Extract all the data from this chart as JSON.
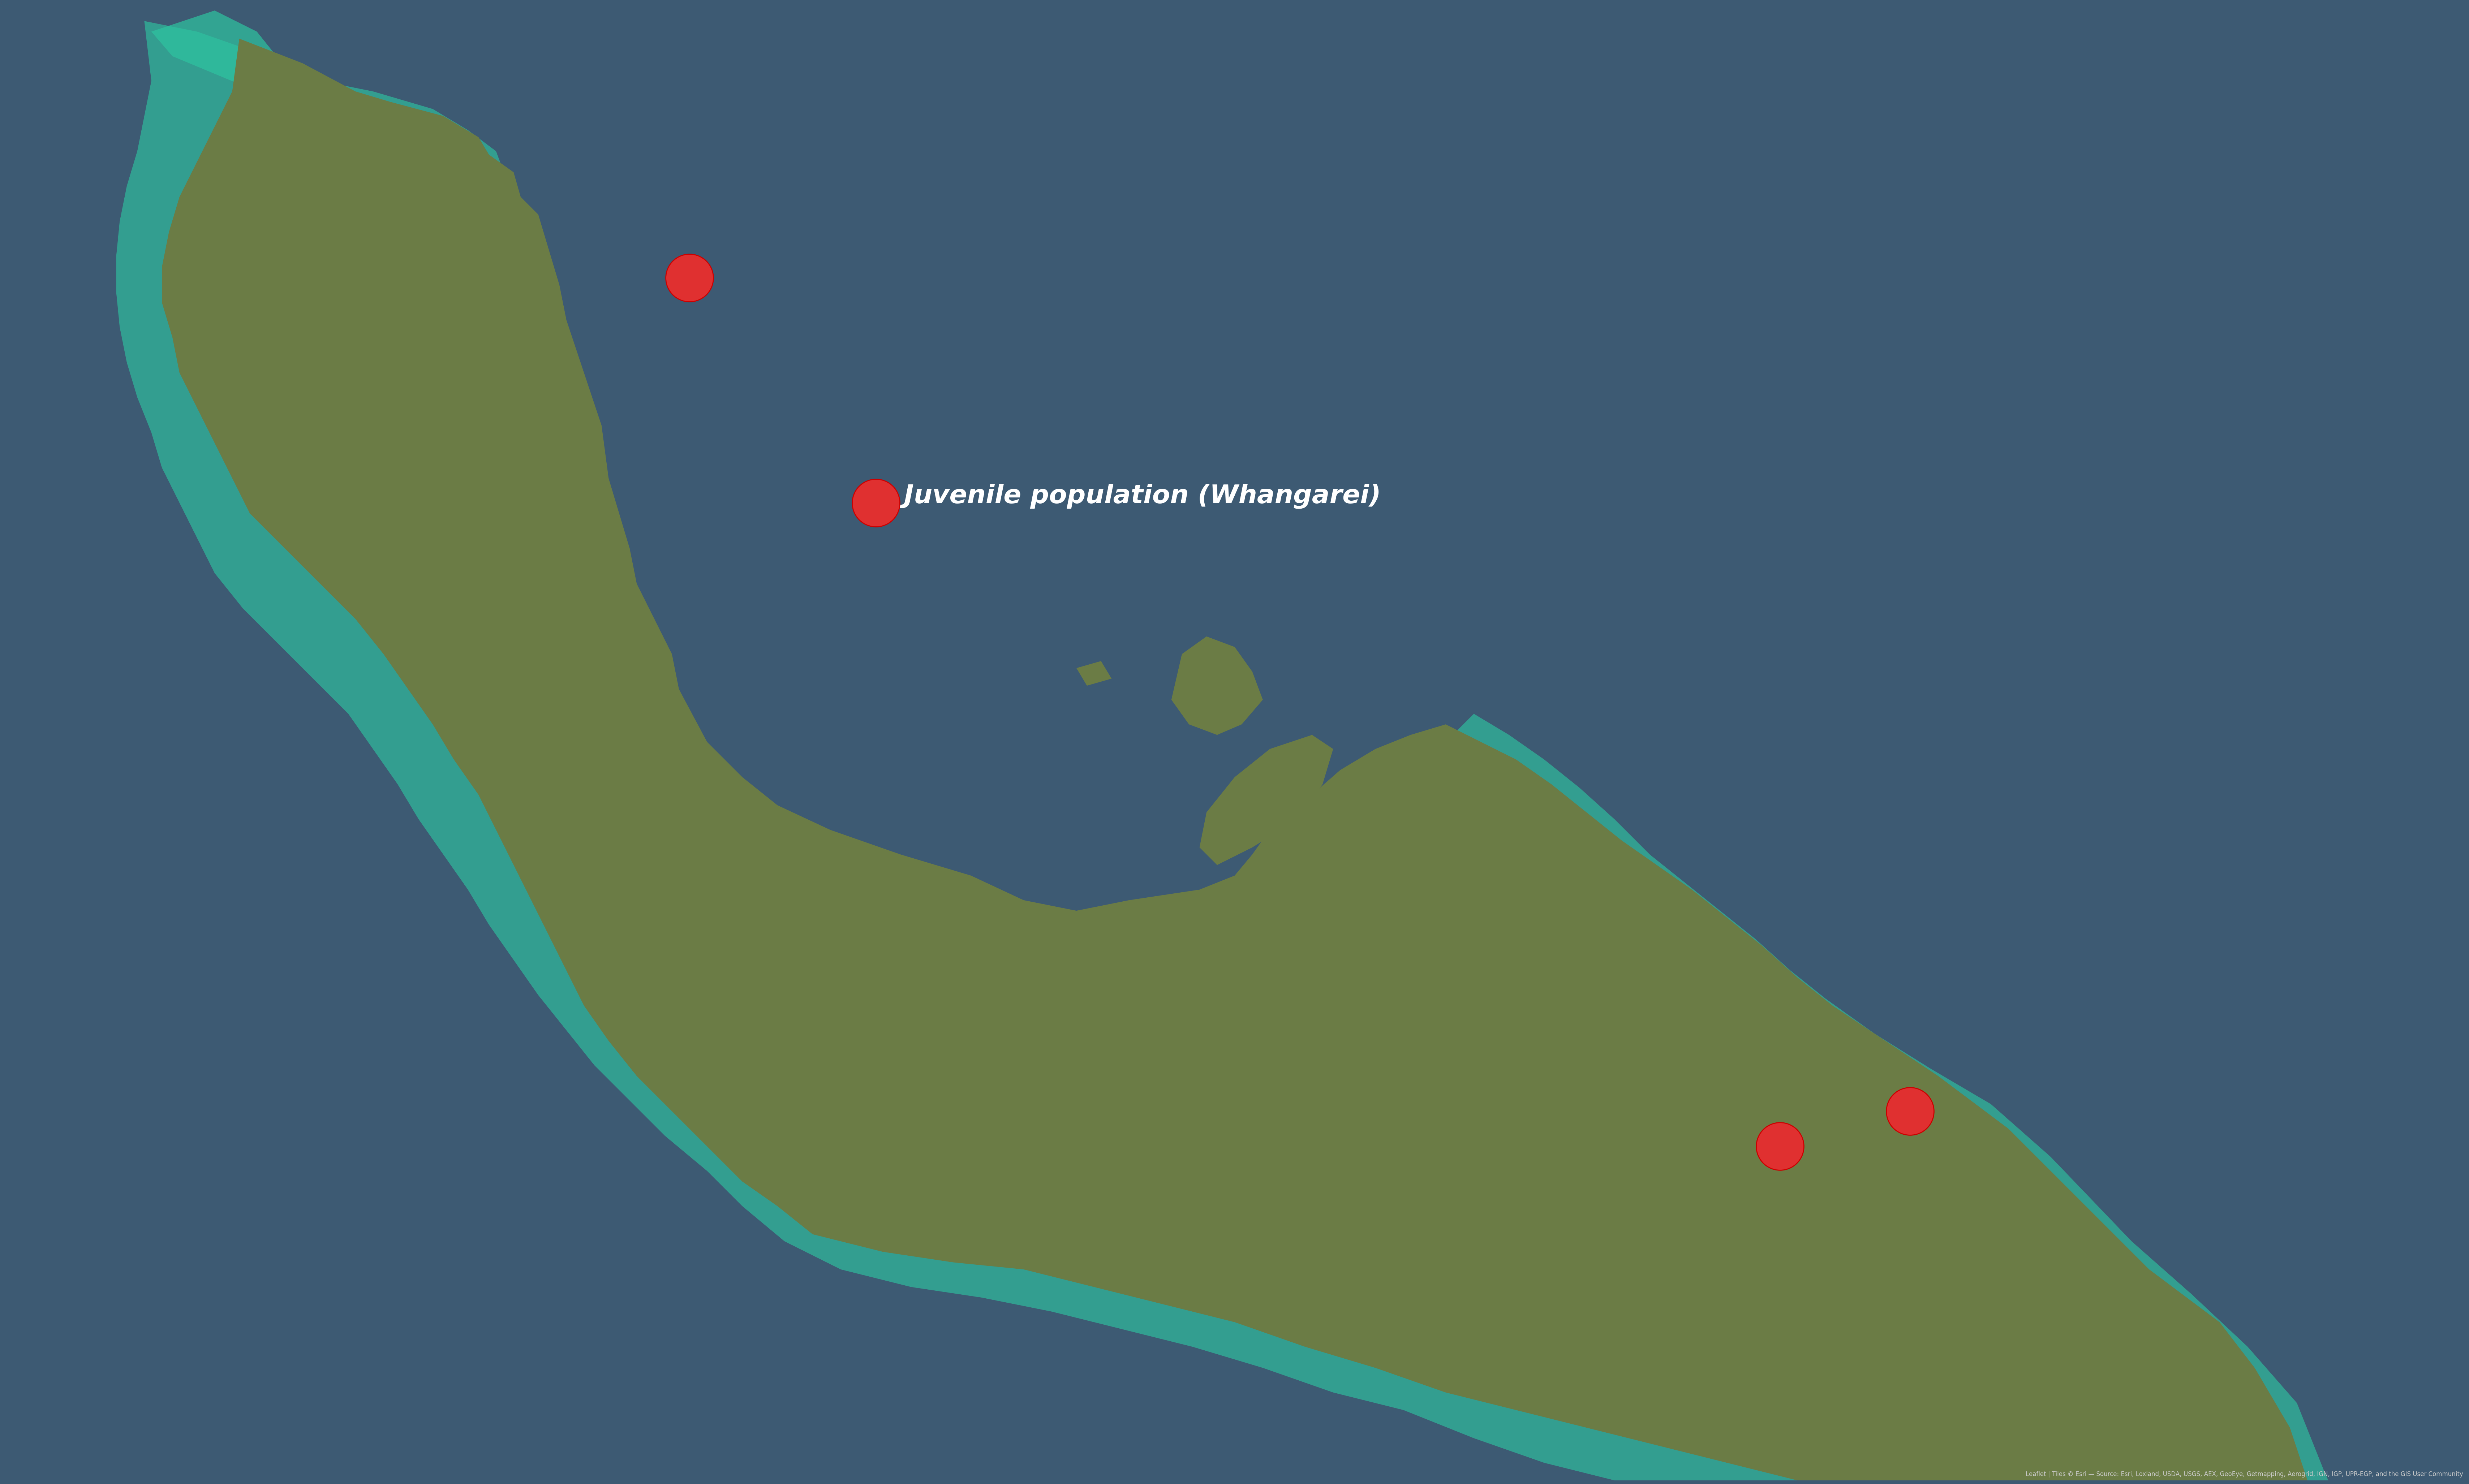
{
  "background_ocean_color": "#3d5a73",
  "teal_overlay_color": "#2ec4a0",
  "teal_overlay_alpha": 0.65,
  "land_color": "#6b7c45",
  "marker_color": "#e03030",
  "marker_size": 180,
  "marker_edge_color": "#cc0000",
  "label_text": "Juvenile population (Whangarei)",
  "label_color": "white",
  "label_fontsize": 52,
  "label_fontstyle": "italic",
  "figsize": [
    68.14,
    49.79
  ],
  "dpi": 100,
  "xlim": [
    172.0,
    179.0
  ],
  "ylim": [
    -38.5,
    -34.3
  ],
  "markers": [
    {
      "lon": 173.95,
      "lat": -35.08,
      "label": null
    },
    {
      "lon": 174.48,
      "lat": -35.72,
      "label": "Juvenile population (Whangarei)"
    },
    {
      "lon": 177.05,
      "lat": -37.55,
      "label": null
    },
    {
      "lon": 177.42,
      "lat": -37.45,
      "label": null
    }
  ],
  "northland_coast": {
    "description": "Approximate outline of Northland peninsula and North Island NZ",
    "land_fill": "#5a7040",
    "coast_color": "#2ec4a0"
  },
  "attribution": "Leaflet | Tiles © Esri — Source: Esri, Loxland, USDA, USGS, AEX, GeoEye, Getmapping, Aerogrid, IGN, IGP, UPR-EGP, and the GIS User Community",
  "attribution_fontsize": 12,
  "attribution_color": "#cccccc"
}
